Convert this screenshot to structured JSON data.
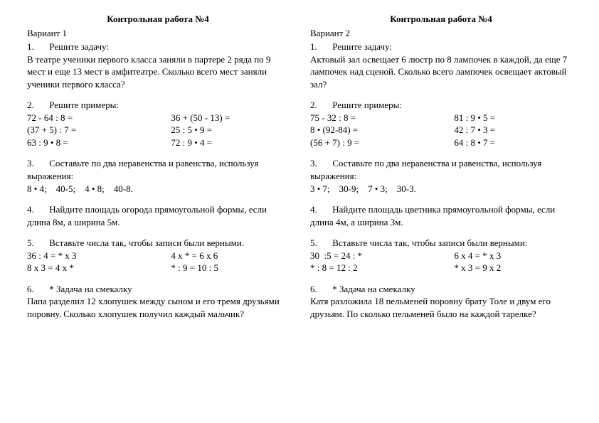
{
  "title": "Контрольная работа №4",
  "variants": [
    {
      "name": "Вариант 1",
      "task1_head": "Решите задачу:",
      "task1_body": "В театре ученики первого класса заняли в партере 2 ряда по 9 мест и еще 13 мест в амфитеатре. Сколько всего мест заняли ученики первого класса?",
      "task2_head": "Решите примеры:",
      "task2_left": [
        "72 - 64 : 8 =",
        "(37 + 5) : 7 =",
        "63 : 9 • 8 ="
      ],
      "task2_right": [
        "36 + (50 - 13) =",
        "25 : 5 • 9 =",
        "72 : 9 • 4 ="
      ],
      "task3_head": "Составьте по два неравенства и равенства, используя выражения:",
      "task3_body": "8 • 4;    40-5;    4 • 8;    40-8.",
      "task4_head": "Найдите площадь огорода прямоугольной формы, если длина 8м, а ширина 5м.",
      "task5_head": "Вставьте числа так, чтобы записи были верными.",
      "task5_left": [
        "36 : 4 = * х 3",
        "8 х 3 = 4 х *"
      ],
      "task5_right": [
        "4 х * = 6 х 6",
        "* : 9 = 10 : 5"
      ],
      "task6_head": "* Задача на смекалку",
      "task6_body": "Папа разделил 12 хлопушек между сыном и его тремя друзьями поровну. Сколько хлопушек получил каждый мальчик?"
    },
    {
      "name": "Вариант 2",
      "task1_head": "Решите задачу:",
      "task1_body": "Актовый зал освещает 6 люстр по 8 лампочек в каждой, да еще 7 лампочек над сценой. Сколько всего лампочек освещает актовый зал?",
      "task2_head": "Решите примеры:",
      "task2_left": [
        "75 - 32 : 8 =",
        "8 • (92-84) =",
        "(56 + 7) : 9 ="
      ],
      "task2_right": [
        "81 : 9 • 5 =",
        "42 : 7 • 3 =",
        "64 : 8 • 7 ="
      ],
      "task3_head": "Составьте по два неравенства и равенства, используя выражения:",
      "task3_body": "3 • 7;    30-9;    7 • 3;    30-3.",
      "task4_head": "Найдите площадь цветника прямоугольной  формы, если длина   4м, а ширина 3м.",
      "task5_head": "Вставьте числа так, чтобы записи были верными:",
      "task5_left": [
        "30  :5 = 24 : *",
        "* : 8 = 12 : 2"
      ],
      "task5_right": [
        "6 х 4 = * х 3",
        "* х 3 = 9 х 2"
      ],
      "task6_head": "* Задача на смекалку",
      "task6_body": "Катя разложила 18 пельменей поровну брату Толе и двум его друзьям. По сколько пельменей было на каждой тарелке?"
    }
  ]
}
